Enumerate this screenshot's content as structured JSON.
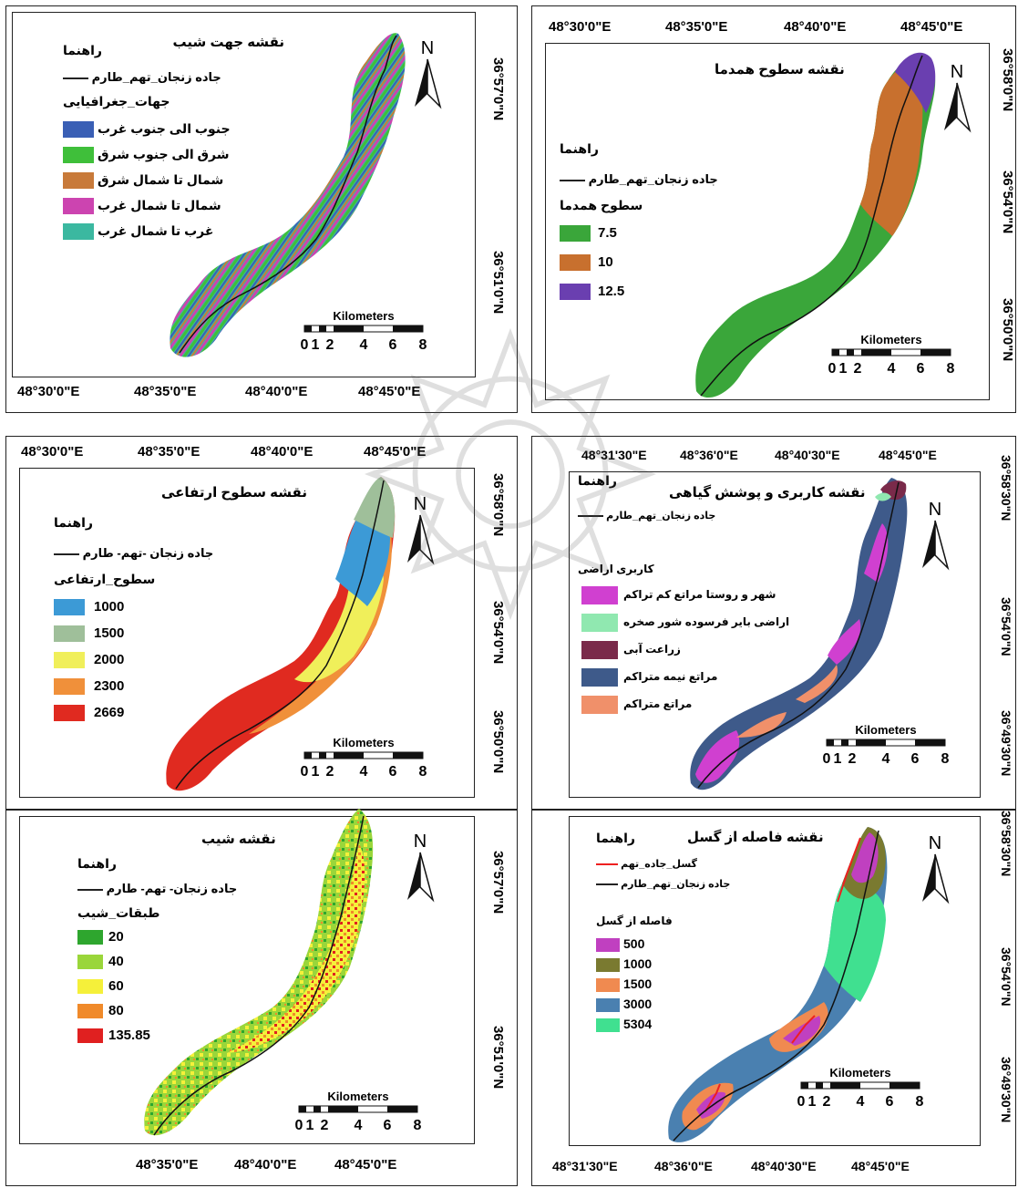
{
  "panels": {
    "aspect": {
      "title": "نقشه جهت شیب",
      "legend_heading": "راهنما",
      "road_label": "جاده زنجان_تهم_طارم",
      "class_heading": "جهات_جغرافیایی",
      "classes": [
        {
          "label": "جنوب الی جنوب غرب",
          "color": "#3a5fb5"
        },
        {
          "label": "شرق الی جنوب شرق",
          "color": "#3fbf3a"
        },
        {
          "label": "شمال تا شمال شرق",
          "color": "#c87a3a"
        },
        {
          "label": "شمال تا شمال غرب",
          "color": "#cc44b0"
        },
        {
          "label": "غرب تا شمال غرب",
          "color": "#3bb8a0"
        }
      ],
      "x_ticks": [
        "48°30'0\"E",
        "48°35'0\"E",
        "48°40'0\"E",
        "48°45'0\"E"
      ],
      "y_ticks": [
        "36°57'0\"N",
        "36°51'0\"N"
      ]
    },
    "isohyet": {
      "title": "نقشه سطوح همدما",
      "legend_heading": "راهنما",
      "road_label": "جاده زنجان_تهم_طارم",
      "class_heading": "سطوح همدما",
      "classes": [
        {
          "label": "7.5",
          "color": "#3aa63a"
        },
        {
          "label": "10",
          "color": "#c8702e"
        },
        {
          "label": "12.5",
          "color": "#6a3fb0"
        }
      ],
      "x_ticks": [
        "48°30'0\"E",
        "48°35'0\"E",
        "48°40'0\"E",
        "48°45'0\"E"
      ],
      "y_ticks": [
        "36°58'0\"N",
        "36°54'0\"N",
        "36°50'0\"N"
      ]
    },
    "elevation": {
      "title": "نقشه سطوح ارتفاعی",
      "legend_heading": "راهنما",
      "road_label": "جاده زنجان -تهم- طارم",
      "class_heading": "سطوح_ارتفاعی",
      "classes": [
        {
          "label": "1000",
          "color": "#3c9ad6"
        },
        {
          "label": "1500",
          "color": "#9fbf9a"
        },
        {
          "label": "2000",
          "color": "#f0ef5a"
        },
        {
          "label": "2300",
          "color": "#f0903a"
        },
        {
          "label": "2669",
          "color": "#e02a20"
        }
      ],
      "x_ticks": [
        "48°30'0\"E",
        "48°35'0\"E",
        "48°40'0\"E",
        "48°45'0\"E"
      ],
      "y_ticks": [
        "36°58'0\"N",
        "36°54'0\"N",
        "36°50'0\"N"
      ]
    },
    "slope": {
      "title": "نقشه شیب",
      "legend_heading": "راهنما",
      "road_label": "جاده زنجان- تهم- طارم",
      "class_heading": "طبقات_شیب",
      "classes": [
        {
          "label": "20",
          "color": "#2ea62e"
        },
        {
          "label": "40",
          "color": "#9ad63a"
        },
        {
          "label": "60",
          "color": "#f5f03a"
        },
        {
          "label": "80",
          "color": "#f08a2a"
        },
        {
          "label": "135.85",
          "color": "#e02020"
        }
      ],
      "x_ticks": [
        "48°35'0\"E",
        "48°40'0\"E",
        "48°45'0\"E"
      ],
      "y_ticks": [
        "36°57'0\"N",
        "36°51'0\"N"
      ]
    },
    "landuse": {
      "title": "نقشه کاربری و پوشش گیاهی",
      "legend_heading": "راهنما",
      "road_label": "جاده زنجان_تهم_طارم",
      "class_heading": "کاربری اراضی",
      "classes": [
        {
          "label": "شهر و روستا مراتع کم تراکم",
          "color": "#d040d0"
        },
        {
          "label": "اراضی بایر فرسوده شور صخره",
          "color": "#90e8b0"
        },
        {
          "label": "زراعت آبی",
          "color": "#7a2a4a"
        },
        {
          "label": "مراتع نیمه متراکم",
          "color": "#3e5a8a"
        },
        {
          "label": "مراتع متراکم",
          "color": "#f0906a"
        }
      ],
      "x_ticks": [
        "48°31'30\"E",
        "48°36'0\"E",
        "48°40'30\"E",
        "48°45'0\"E"
      ],
      "y_ticks": [
        "36°58'30\"N",
        "36°54'0\"N",
        "36°49'30\"N"
      ]
    },
    "fault": {
      "title": "نقشه فاصله از گسل",
      "legend_heading": "راهنما",
      "fault_label": "گسل_جاده_تهم",
      "road_label": "جاده زنجان_تهم_طارم",
      "class_heading": "فاصله از گسل",
      "classes": [
        {
          "label": "500",
          "color": "#c040c0"
        },
        {
          "label": "1000",
          "color": "#7a7a30"
        },
        {
          "label": "1500",
          "color": "#f08a50"
        },
        {
          "label": "3000",
          "color": "#4a80b0"
        },
        {
          "label": "5304",
          "color": "#40e090"
        }
      ],
      "x_ticks": [
        "48°31'30\"E",
        "48°36'0\"E",
        "48°40'30\"E",
        "48°45'0\"E"
      ],
      "y_ticks": [
        "36°58'30\"N",
        "36°54'0\"N",
        "36°49'30\"N"
      ]
    }
  },
  "north_label": "N",
  "scale": {
    "unit": "Kilometers",
    "labels": [
      "0",
      "1",
      "2",
      "4",
      "6",
      "8"
    ]
  }
}
